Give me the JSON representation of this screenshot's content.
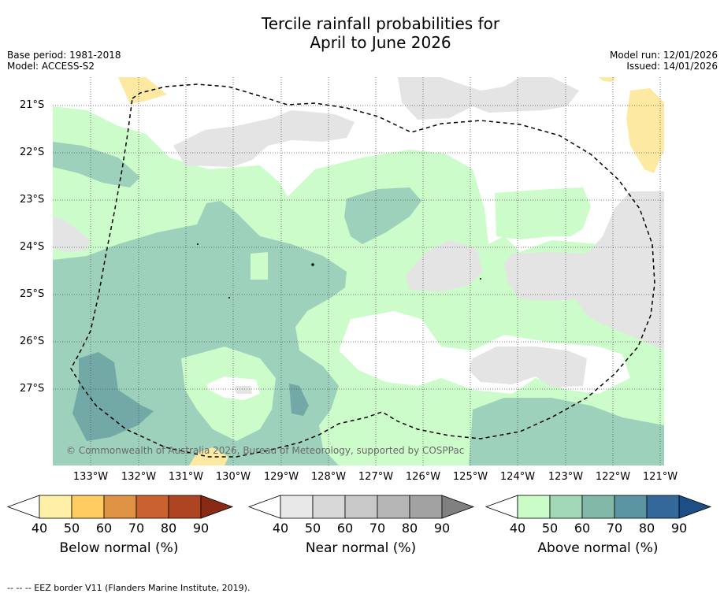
{
  "title_line1": "Tercile rainfall probabilities for",
  "title_line2": "April to June 2026",
  "meta": {
    "base_period": "Base period: 1981-2018",
    "model": "Model: ACCESS-S2",
    "model_run": "Model run: 12/01/2026",
    "issued": "Issued: 14/01/2026"
  },
  "lat_labels": [
    "21°S",
    "22°S",
    "23°S",
    "24°S",
    "25°S",
    "26°S",
    "27°S"
  ],
  "lon_labels": [
    "133°W",
    "132°W",
    "131°W",
    "130°W",
    "129°W",
    "128°W",
    "127°W",
    "126°W",
    "125°W",
    "124°W",
    "123°W",
    "122°W",
    "121°W"
  ],
  "copyright": "© Commonwealth of Australia 2026, Bureau of Meteorology, supported by COSPPac",
  "colorbars": [
    {
      "title": "Below normal (%)",
      "colors": [
        "#ffffff",
        "#fff0a8",
        "#fecc60",
        "#e09344",
        "#c9622e",
        "#ad4422",
        "#8a2a14"
      ]
    },
    {
      "title": "Near normal (%)",
      "colors": [
        "#ffffff",
        "#e8e8e8",
        "#d8d8d8",
        "#c8c8c8",
        "#b6b6b6",
        "#a2a2a2",
        "#808080"
      ]
    },
    {
      "title": "Above normal (%)",
      "colors": [
        "#ffffff",
        "#c9fbc6",
        "#a2d8b5",
        "#82b8a8",
        "#5b95a2",
        "#34689a",
        "#1d4e85"
      ]
    }
  ],
  "colorbar_ticks": [
    "40",
    "50",
    "60",
    "70",
    "80",
    "90"
  ],
  "map_colors": {
    "above_50": "#cbfcc9",
    "above_60": "#9dd1bb",
    "above_70": "#72a8a6",
    "near_50": "#e4e4e4",
    "below_50": "#fee9a2"
  },
  "footnote": "--  --  -- EEZ border V11 (Flanders Marine Institute, 2019)."
}
